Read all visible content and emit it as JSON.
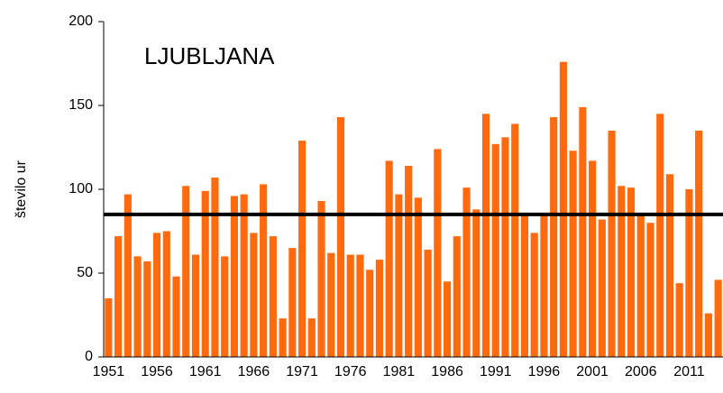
{
  "chart_data": {
    "type": "bar",
    "title": "LJUBLJANA",
    "ylabel": "število ur",
    "categories": [
      "1951",
      null,
      null,
      null,
      null,
      "1956",
      null,
      null,
      null,
      null,
      "1961",
      null,
      null,
      null,
      null,
      "1966",
      null,
      null,
      null,
      null,
      "1971",
      null,
      null,
      null,
      null,
      "1976",
      null,
      null,
      null,
      null,
      "1981",
      null,
      null,
      null,
      null,
      "1986",
      null,
      null,
      null,
      null,
      "1991",
      null,
      null,
      null,
      null,
      "1996",
      null,
      null,
      null,
      null,
      "2001",
      null,
      null,
      null,
      null,
      "2006",
      null,
      null,
      null,
      null,
      "2011",
      null,
      null,
      null
    ],
    "values": [
      35,
      72,
      97,
      60,
      57,
      74,
      75,
      48,
      102,
      61,
      99,
      107,
      60,
      96,
      97,
      74,
      103,
      72,
      23,
      65,
      129,
      23,
      93,
      62,
      143,
      61,
      61,
      52,
      58,
      117,
      97,
      114,
      95,
      64,
      124,
      45,
      72,
      101,
      88,
      145,
      127,
      131,
      139,
      85,
      74,
      85,
      143,
      176,
      123,
      149,
      117,
      82,
      135,
      102,
      101,
      85,
      80,
      145,
      109,
      44,
      100,
      135,
      26,
      46
    ],
    "color": "#ff6a0e",
    "hline": 85,
    "hline_color": "#000000",
    "ylim": [
      0,
      200
    ],
    "yticks": [
      0,
      50,
      100,
      150,
      200
    ],
    "grid": false
  }
}
